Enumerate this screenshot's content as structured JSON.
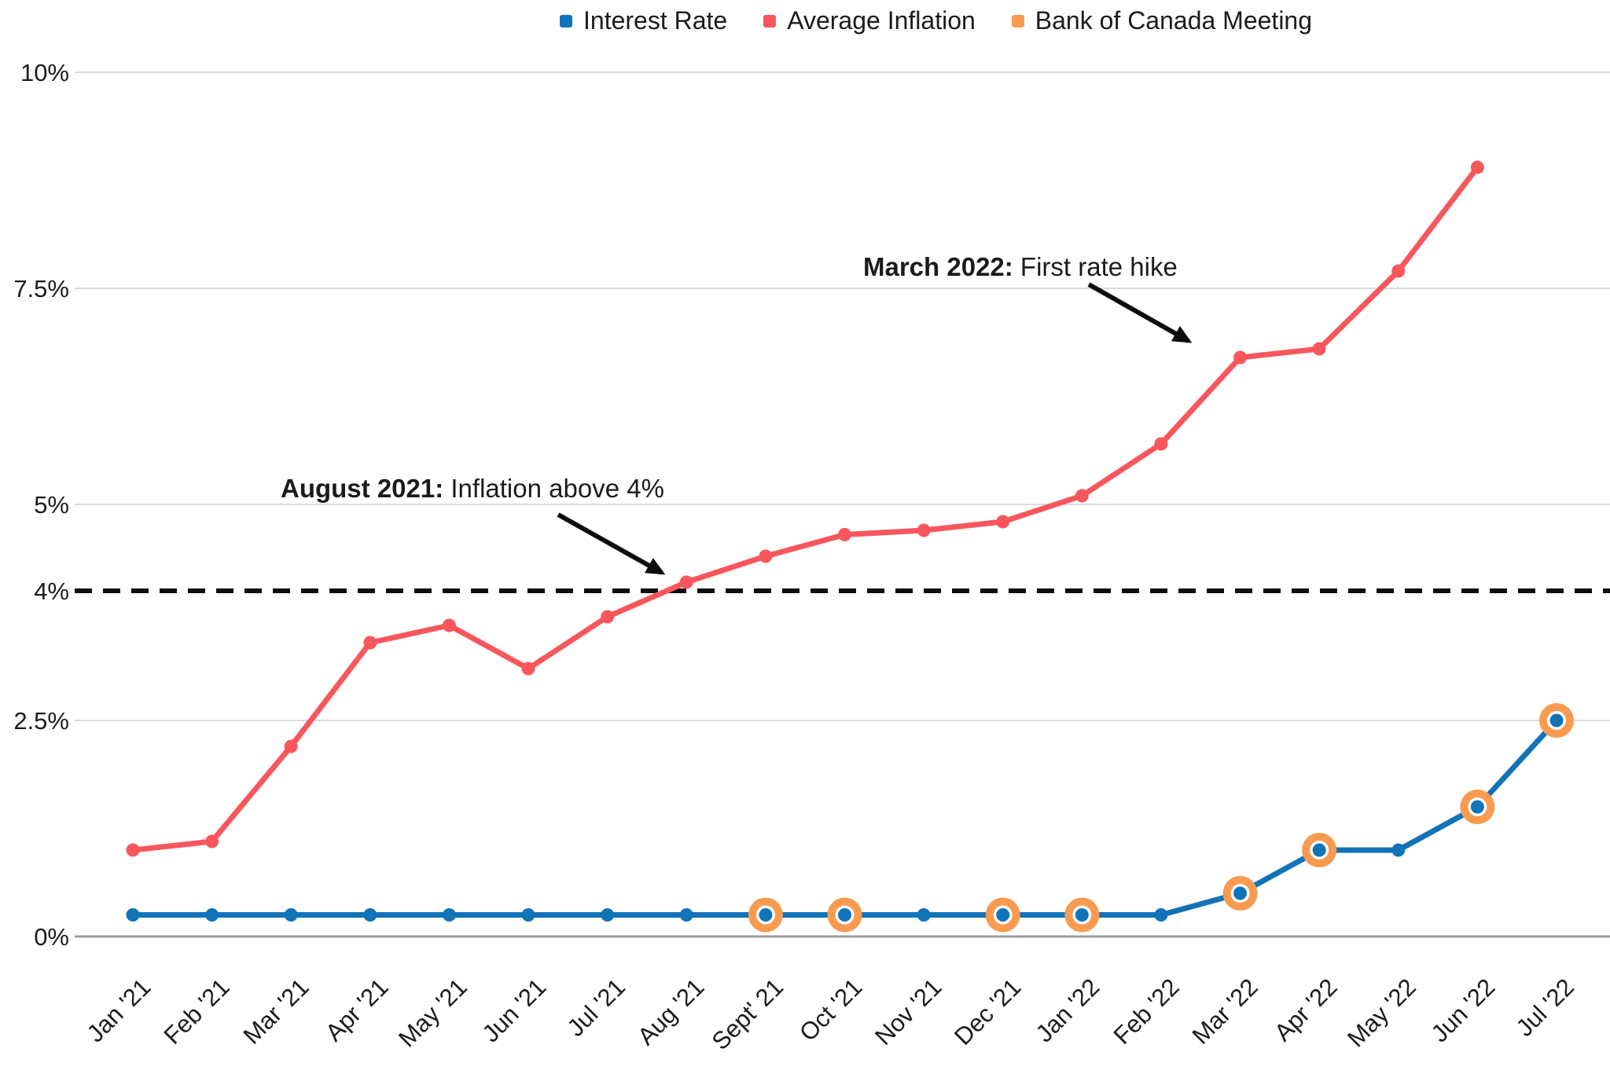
{
  "legend": {
    "items": [
      {
        "label": "Interest Rate",
        "color": "#1173B8"
      },
      {
        "label": "Average Inflation",
        "color": "#F7575C"
      },
      {
        "label": "Bank of Canada Meeting",
        "color": "#F89B51"
      }
    ]
  },
  "annotations": [
    {
      "bold": "August 2021:",
      "text": " Inflation above 4%",
      "target_category": "Aug '21"
    },
    {
      "bold": "March 2022:",
      "text": " First rate hike",
      "target_category": "Mar '22"
    }
  ],
  "chart_data": {
    "type": "line",
    "categories": [
      "Jan '21",
      "Feb '21",
      "Mar '21",
      "Apr '21",
      "May '21",
      "Jun '21",
      "Jul '21",
      "Aug '21",
      "Sept' 21",
      "Oct '21",
      "Nov '21",
      "Dec '21",
      "Jan '22",
      "Feb '22",
      "Mar '22",
      "Apr '22",
      "May '22",
      "Jun '22",
      "Jul '22"
    ],
    "series": [
      {
        "name": "Interest Rate",
        "color": "#1173B8",
        "values": [
          0.25,
          0.25,
          0.25,
          0.25,
          0.25,
          0.25,
          0.25,
          0.25,
          0.25,
          0.25,
          0.25,
          0.25,
          0.25,
          0.25,
          0.5,
          1.0,
          1.0,
          1.5,
          2.5
        ]
      },
      {
        "name": "Average Inflation",
        "color": "#F7575C",
        "values": [
          1.0,
          1.1,
          2.2,
          3.4,
          3.6,
          3.1,
          3.7,
          4.1,
          4.4,
          4.65,
          4.7,
          4.8,
          5.1,
          5.7,
          6.7,
          6.8,
          7.7,
          8.9,
          null
        ]
      }
    ],
    "markers": {
      "name": "Bank of Canada Meeting",
      "color": "#F89B51",
      "on_series": "Interest Rate",
      "category_indices": [
        8,
        9,
        11,
        12,
        14,
        15,
        17,
        18
      ],
      "categories": [
        "Sept' 21",
        "Oct '21",
        "Dec '21",
        "Jan '22",
        "Mar '22",
        "Apr '22",
        "Jun '22",
        "Jul '22"
      ]
    },
    "yticks": [
      {
        "label": "10%",
        "value": 10
      },
      {
        "label": "7.5%",
        "value": 7.5
      },
      {
        "label": "5%",
        "value": 5
      },
      {
        "label": "4%",
        "value": 4,
        "reference": true
      },
      {
        "label": "2.5%",
        "value": 2.5
      },
      {
        "label": "0%",
        "value": 0
      }
    ],
    "reference_line": {
      "value": 4,
      "style": "dashed",
      "color": "#0d0d0d"
    },
    "ylim": [
      0,
      10.3
    ],
    "grid": "horizontal",
    "legend_position": "top-center",
    "colors": {
      "grid": "#dadada",
      "axis": "#9c9c9c",
      "text": "#1b1b1b"
    }
  }
}
